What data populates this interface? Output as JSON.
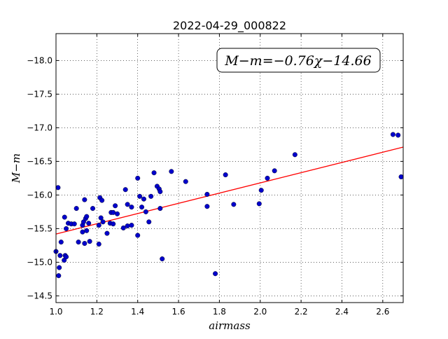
{
  "chart_data": {
    "type": "scatter",
    "title": "2022-04-29_000822",
    "xlabel": "airmass",
    "ylabel": "M−m",
    "xlim": [
      1.0,
      2.7
    ],
    "ylim": [
      -18.4,
      -14.4
    ],
    "y_inverted": true,
    "grid": true,
    "x_ticks": [
      1.0,
      1.2,
      1.4,
      1.6,
      1.8,
      2.0,
      2.2,
      2.4,
      2.6
    ],
    "x_tick_labels": [
      "1.0",
      "1.2",
      "1.4",
      "1.6",
      "1.8",
      "2.0",
      "2.2",
      "2.4",
      "2.6"
    ],
    "y_ticks": [
      -14.5,
      -15.0,
      -15.5,
      -16.0,
      -16.5,
      -17.0,
      -17.5,
      -18.0
    ],
    "y_tick_labels": [
      "−14.5",
      "−15.0",
      "−15.5",
      "−16.0",
      "−16.5",
      "−17.0",
      "−17.5",
      "−18.0"
    ],
    "annotation": "M−m=−0.76χ−14.66",
    "annotation_position": "top-right",
    "fit_line": {
      "slope": -0.76,
      "intercept": -14.66,
      "color": "#ff0000"
    },
    "marker_color": "#0000cc",
    "series": [
      {
        "points": [
          [
            1.0,
            -15.16
          ],
          [
            1.01,
            -16.11
          ],
          [
            1.013,
            -14.8
          ],
          [
            1.016,
            -14.92
          ],
          [
            1.02,
            -15.1
          ],
          [
            1.025,
            -15.3
          ],
          [
            1.04,
            -15.03
          ],
          [
            1.045,
            -15.1
          ],
          [
            1.05,
            -15.08
          ],
          [
            1.042,
            -15.67
          ],
          [
            1.05,
            -15.5
          ],
          [
            1.06,
            -15.58
          ],
          [
            1.075,
            -15.57
          ],
          [
            1.09,
            -15.57
          ],
          [
            1.1,
            -15.8
          ],
          [
            1.11,
            -15.3
          ],
          [
            1.13,
            -15.45
          ],
          [
            1.13,
            -15.55
          ],
          [
            1.135,
            -15.6
          ],
          [
            1.14,
            -15.28
          ],
          [
            1.14,
            -15.93
          ],
          [
            1.145,
            -15.65
          ],
          [
            1.15,
            -15.68
          ],
          [
            1.15,
            -15.47
          ],
          [
            1.16,
            -15.58
          ],
          [
            1.165,
            -15.31
          ],
          [
            1.18,
            -15.8
          ],
          [
            1.21,
            -15.27
          ],
          [
            1.21,
            -15.55
          ],
          [
            1.215,
            -15.96
          ],
          [
            1.22,
            -15.66
          ],
          [
            1.225,
            -15.92
          ],
          [
            1.23,
            -15.6
          ],
          [
            1.25,
            -15.43
          ],
          [
            1.265,
            -15.58
          ],
          [
            1.27,
            -15.74
          ],
          [
            1.28,
            -15.57
          ],
          [
            1.28,
            -15.74
          ],
          [
            1.29,
            -15.84
          ],
          [
            1.3,
            -15.72
          ],
          [
            1.33,
            -15.51
          ],
          [
            1.34,
            -16.08
          ],
          [
            1.35,
            -15.54
          ],
          [
            1.35,
            -15.86
          ],
          [
            1.37,
            -15.55
          ],
          [
            1.37,
            -15.82
          ],
          [
            1.4,
            -15.4
          ],
          [
            1.4,
            -16.25
          ],
          [
            1.41,
            -15.98
          ],
          [
            1.42,
            -15.82
          ],
          [
            1.43,
            -15.94
          ],
          [
            1.44,
            -15.75
          ],
          [
            1.455,
            -15.6
          ],
          [
            1.465,
            -15.98
          ],
          [
            1.48,
            -16.33
          ],
          [
            1.495,
            -16.13
          ],
          [
            1.505,
            -16.09
          ],
          [
            1.51,
            -15.8
          ],
          [
            1.51,
            -16.05
          ],
          [
            1.52,
            -15.05
          ],
          [
            1.565,
            -16.35
          ],
          [
            1.635,
            -16.2
          ],
          [
            1.74,
            -15.83
          ],
          [
            1.74,
            -16.01
          ],
          [
            1.83,
            -16.3
          ],
          [
            1.87,
            -15.86
          ],
          [
            1.995,
            -15.87
          ],
          [
            2.005,
            -16.07
          ],
          [
            2.035,
            -16.25
          ],
          [
            2.07,
            -16.36
          ],
          [
            2.17,
            -16.6
          ],
          [
            2.65,
            -16.9
          ],
          [
            2.675,
            -16.89
          ],
          [
            2.69,
            -16.27
          ],
          [
            1.78,
            -14.83
          ]
        ]
      }
    ]
  }
}
